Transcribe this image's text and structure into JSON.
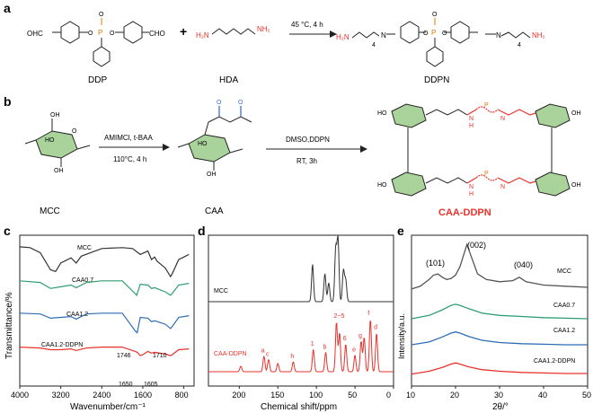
{
  "figure_id": "scheme-and-characterization-figure",
  "panels": {
    "a": {
      "letter": "a",
      "reactant1": "DDP",
      "reactant2": "HDA",
      "product": "DDPN",
      "plus": "+",
      "condition": "45 °C, 4 h",
      "cho_label": "OHC",
      "cho_label_right": "CHO",
      "h2n_label": "H₂N",
      "nh2_label": "NH₂",
      "p_label": "P",
      "o_label": "O",
      "n_label": "N",
      "sub_4": "4"
    },
    "b": {
      "letter": "b",
      "step1_condition_top": "AMIMCl, t-BAA",
      "step1_condition_bottom": "110°C, 4 h",
      "step2_condition_top": "DMSO,DDPN",
      "step2_condition_bottom": "RT, 3h",
      "mcc_label": "MCC",
      "caa_label": "CAA",
      "product_label": "CAA-DDPN",
      "oh_label": "OH",
      "ho_label": "HO",
      "o_label": "O",
      "n_label": "N",
      "h_label": "H",
      "p_label": "P",
      "product_color": "#e8322c",
      "glucose_green": "#a9d39b",
      "carbonyl_blue": "#3a6fd8"
    },
    "c": {
      "letter": "c",
      "ylabel": "Transmittance/%",
      "xlabel": "Wavenumber/cm⁻¹",
      "xticks": [
        "4000",
        "3200",
        "2400",
        "1600",
        "800"
      ],
      "series_labels": [
        "MCC",
        "CAA0.7",
        "CAA1.2",
        "CAA1.2-DDPN"
      ],
      "peak_labels": [
        "1746",
        "1710",
        "1650",
        "1605"
      ]
    },
    "d": {
      "letter": "d",
      "xlabel": "Chemical shift/ppm",
      "xticks": [
        "200",
        "150",
        "100",
        "50",
        "0"
      ],
      "series_labels": [
        "MCC",
        "CAA-DDPN"
      ],
      "peak_labels": [
        "a",
        "c",
        "h",
        "1",
        "b",
        "2~5",
        "6",
        "e",
        "g",
        "f",
        "d"
      ]
    },
    "e": {
      "letter": "e",
      "ylabel": "Intensity/a.u.",
      "xlabel": "2θ/°",
      "xticks": [
        "10",
        "20",
        "30",
        "40",
        "50"
      ],
      "series_labels": [
        "MCC",
        "CAA0.7",
        "CAA1.2",
        "CAA1.2-DDPN"
      ],
      "peak_labels": [
        "(101)",
        "(002)",
        "(040)"
      ]
    }
  },
  "colors": {
    "black": "#333333",
    "green": "#2e9e72",
    "blue": "#2f6db3",
    "red": "#e8322c",
    "orange": "#e07b00"
  },
  "chart_data": [
    {
      "panel": "c",
      "type": "line",
      "title": "",
      "xlabel": "Wavenumber/cm⁻¹",
      "ylabel": "Transmittance/%",
      "xlim": [
        4000,
        600
      ],
      "series": [
        {
          "name": "MCC",
          "color": "#333333",
          "x": [
            4000,
            3800,
            3600,
            3400,
            3300,
            3200,
            3000,
            2900,
            2800,
            2400,
            2000,
            1800,
            1650,
            1500,
            1430,
            1370,
            1320,
            1160,
            1060,
            1030,
            900,
            800,
            700
          ],
          "y": [
            0.97,
            0.96,
            0.9,
            0.7,
            0.68,
            0.78,
            0.84,
            0.78,
            0.86,
            0.95,
            0.96,
            0.95,
            0.88,
            0.92,
            0.82,
            0.85,
            0.8,
            0.72,
            0.62,
            0.65,
            0.82,
            0.85,
            0.88
          ]
        },
        {
          "name": "CAA0.7",
          "color": "#2e9e72",
          "x": [
            4000,
            3600,
            3400,
            3200,
            3000,
            2900,
            2700,
            2400,
            2000,
            1750,
            1720,
            1650,
            1500,
            1430,
            1370,
            1160,
            1060,
            1030,
            900,
            700
          ],
          "y": [
            0.95,
            0.93,
            0.86,
            0.88,
            0.9,
            0.87,
            0.93,
            0.95,
            0.95,
            0.8,
            0.78,
            0.91,
            0.9,
            0.86,
            0.87,
            0.82,
            0.78,
            0.8,
            0.9,
            0.92
          ]
        },
        {
          "name": "CAA1.2",
          "color": "#2f6db3",
          "x": [
            4000,
            3600,
            3400,
            3200,
            3000,
            2900,
            2700,
            2400,
            2000,
            1746,
            1710,
            1650,
            1500,
            1430,
            1370,
            1160,
            1060,
            1030,
            900,
            700
          ],
          "y": [
            0.95,
            0.94,
            0.89,
            0.9,
            0.91,
            0.88,
            0.94,
            0.95,
            0.95,
            0.74,
            0.72,
            0.9,
            0.89,
            0.85,
            0.86,
            0.82,
            0.77,
            0.79,
            0.9,
            0.92
          ]
        },
        {
          "name": "CAA1.2-DDPN",
          "color": "#e8322c",
          "x": [
            4000,
            3600,
            3400,
            3200,
            3000,
            2900,
            2700,
            2400,
            2000,
            1746,
            1710,
            1650,
            1605,
            1500,
            1430,
            1370,
            1160,
            1060,
            1030,
            900,
            700
          ],
          "y": [
            0.93,
            0.92,
            0.9,
            0.9,
            0.91,
            0.89,
            0.92,
            0.93,
            0.93,
            0.88,
            0.87,
            0.83,
            0.84,
            0.88,
            0.86,
            0.87,
            0.85,
            0.83,
            0.84,
            0.9,
            0.91
          ]
        }
      ]
    },
    {
      "panel": "d",
      "type": "line",
      "title": "",
      "xlabel": "Chemical shift/ppm",
      "ylabel": "",
      "xlim": [
        240,
        0
      ],
      "series": [
        {
          "name": "MCC",
          "color": "#333333",
          "peaks": [
            [
              105,
              0.6
            ],
            [
              89,
              0.45
            ],
            [
              84,
              0.3
            ],
            [
              75,
              0.85
            ],
            [
              72,
              1.0
            ],
            [
              65,
              0.5
            ],
            [
              62,
              0.35
            ]
          ]
        },
        {
          "name": "CAA-DDPN",
          "color": "#e8322c",
          "peaks": [
            [
              198,
              0.1
            ],
            [
              168,
              0.28
            ],
            [
              162,
              0.22
            ],
            [
              150,
              0.15
            ],
            [
              130,
              0.18
            ],
            [
              104,
              0.4
            ],
            [
              88,
              0.35
            ],
            [
              74,
              0.9
            ],
            [
              70,
              0.7
            ],
            [
              62,
              0.5
            ],
            [
              50,
              0.3
            ],
            [
              42,
              0.55
            ],
            [
              38,
              0.62
            ],
            [
              30,
              0.95
            ],
            [
              22,
              0.7
            ]
          ]
        }
      ]
    },
    {
      "panel": "e",
      "type": "line",
      "title": "",
      "xlabel": "2θ/°",
      "ylabel": "Intensity/a.u.",
      "xlim": [
        10,
        50
      ],
      "series": [
        {
          "name": "MCC",
          "color": "#555555",
          "x": [
            10,
            12,
            14,
            15,
            16,
            17,
            18,
            19,
            20,
            21,
            22,
            22.6,
            23.5,
            25,
            27,
            30,
            33,
            34.5,
            36,
            40,
            45,
            50
          ],
          "y": [
            0.45,
            0.5,
            0.62,
            0.7,
            0.72,
            0.66,
            0.62,
            0.64,
            0.7,
            0.85,
            1.1,
            1.25,
            1.05,
            0.72,
            0.62,
            0.58,
            0.6,
            0.66,
            0.58,
            0.52,
            0.5,
            0.48
          ]
        },
        {
          "name": "CAA0.7",
          "color": "#2e9e72",
          "x": [
            10,
            14,
            17,
            19,
            20,
            21,
            23,
            26,
            30,
            35,
            40,
            45,
            50
          ],
          "y": [
            0.2,
            0.26,
            0.36,
            0.44,
            0.46,
            0.44,
            0.38,
            0.3,
            0.26,
            0.24,
            0.22,
            0.21,
            0.2
          ]
        },
        {
          "name": "CAA1.2",
          "color": "#2f6db3",
          "x": [
            10,
            14,
            17,
            19,
            20,
            21,
            23,
            26,
            30,
            35,
            40,
            45,
            50
          ],
          "y": [
            0.1,
            0.15,
            0.24,
            0.31,
            0.33,
            0.31,
            0.25,
            0.18,
            0.14,
            0.12,
            0.11,
            0.1,
            0.1
          ]
        },
        {
          "name": "CAA1.2-DDPN",
          "color": "#e8322c",
          "x": [
            10,
            14,
            17,
            19,
            20,
            21,
            23,
            26,
            30,
            35,
            40,
            45,
            50
          ],
          "y": [
            -0.02,
            0.03,
            0.1,
            0.16,
            0.18,
            0.16,
            0.11,
            0.06,
            0.03,
            0.01,
            0.0,
            -0.01,
            -0.01
          ]
        }
      ]
    }
  ]
}
